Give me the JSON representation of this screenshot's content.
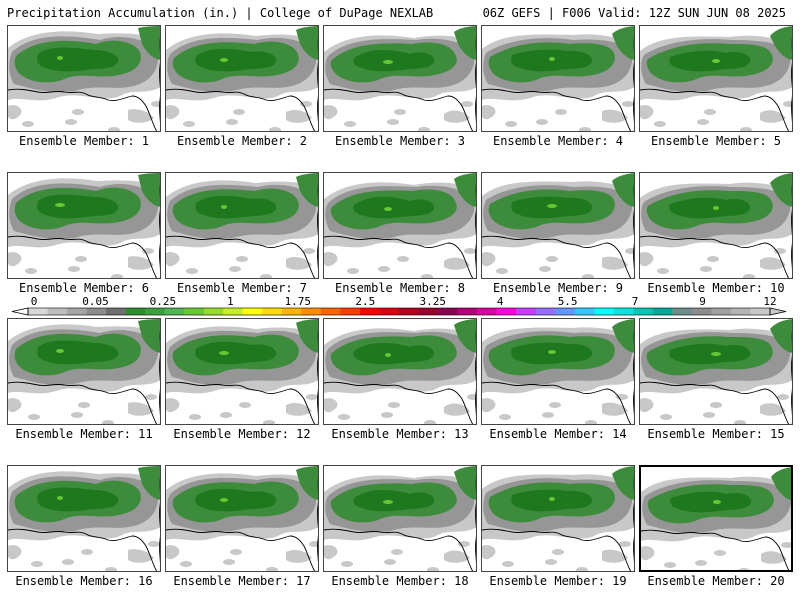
{
  "header": {
    "left": "Precipitation Accumulation (in.) | College of DuPage NEXLAB",
    "right": "06Z GEFS | F006 Valid: 12Z SUN JUN 08 2025"
  },
  "panels": [
    {
      "label": "Ensemble Member: 1"
    },
    {
      "label": "Ensemble Member: 2"
    },
    {
      "label": "Ensemble Member: 3"
    },
    {
      "label": "Ensemble Member: 4"
    },
    {
      "label": "Ensemble Member: 5"
    },
    {
      "label": "Ensemble Member: 6"
    },
    {
      "label": "Ensemble Member: 7"
    },
    {
      "label": "Ensemble Member: 8"
    },
    {
      "label": "Ensemble Member: 9"
    },
    {
      "label": "Ensemble Member: 10"
    },
    {
      "label": "Ensemble Member: 11"
    },
    {
      "label": "Ensemble Member: 12"
    },
    {
      "label": "Ensemble Member: 13"
    },
    {
      "label": "Ensemble Member: 14"
    },
    {
      "label": "Ensemble Member: 15"
    },
    {
      "label": "Ensemble Member: 16"
    },
    {
      "label": "Ensemble Member: 17"
    },
    {
      "label": "Ensemble Member: 18"
    },
    {
      "label": "Ensemble Member: 19"
    },
    {
      "label": "Ensemble Member: 20",
      "selected": true
    }
  ],
  "colorbar": {
    "tick_labels": [
      "0",
      "0.05",
      "0.25",
      "1",
      "1.75",
      "2.5",
      "3.25",
      "4",
      "5.5",
      "7",
      "9",
      "12"
    ],
    "colors": [
      "#d8d8d8",
      "#bebebe",
      "#a5a5a5",
      "#8c8c8c",
      "#6e6e6e",
      "#2e8b2e",
      "#3ca03c",
      "#50b450",
      "#6ac832",
      "#96dc28",
      "#c8f01e",
      "#ffff00",
      "#ffdc00",
      "#ffb400",
      "#ff8c00",
      "#ff6400",
      "#ff3c00",
      "#ff0000",
      "#dc0014",
      "#b4001e",
      "#96002d",
      "#8c0050",
      "#b40078",
      "#dc00a0",
      "#ff00dc",
      "#c83cff",
      "#966eff",
      "#6496ff",
      "#32c8ff",
      "#00ffff",
      "#00e6dc",
      "#00c8b4",
      "#00aa96",
      "#6e8c8c",
      "#8c8c8c",
      "#a0a0a0",
      "#b4b4b4",
      "#c8c8c8"
    ]
  },
  "colors": {
    "land": "#ffffff",
    "light_precip": "#c8c8c8",
    "medium_precip": "#969696",
    "moderate_precip": "#3c8c3c",
    "heavy_precip": "#1e781e",
    "highlight_precip": "#64c832"
  }
}
